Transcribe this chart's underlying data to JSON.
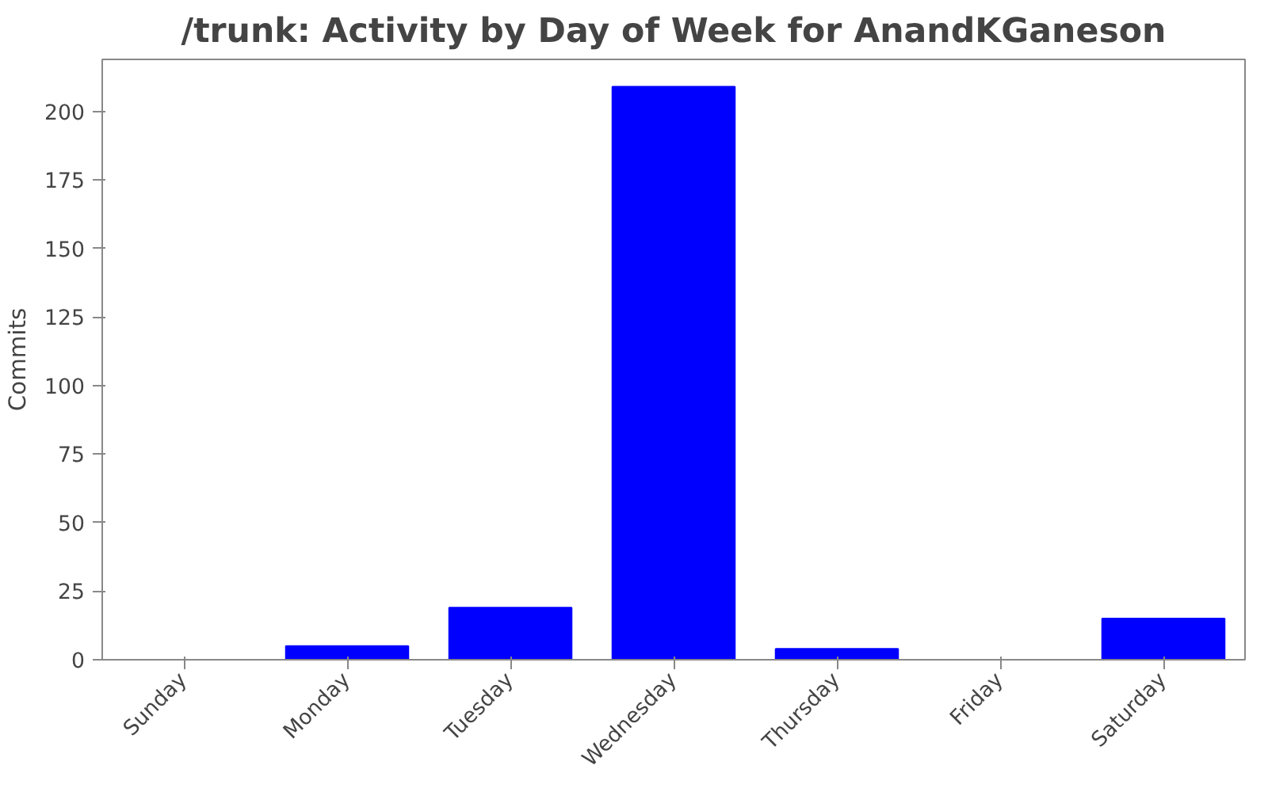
{
  "chart_data": {
    "type": "bar",
    "title": "/trunk: Activity by Day of Week for AnandKGaneson",
    "ylabel": "Commits",
    "categories": [
      "Sunday",
      "Monday",
      "Tuesday",
      "Wednesday",
      "Thursday",
      "Friday",
      "Saturday"
    ],
    "values": [
      0,
      5,
      19,
      209,
      4,
      0,
      15
    ],
    "color": "#0000ff",
    "ylim": [
      0,
      219
    ],
    "yticks": [
      0,
      25,
      50,
      75,
      100,
      125,
      150,
      175,
      200
    ],
    "grid": false
  }
}
